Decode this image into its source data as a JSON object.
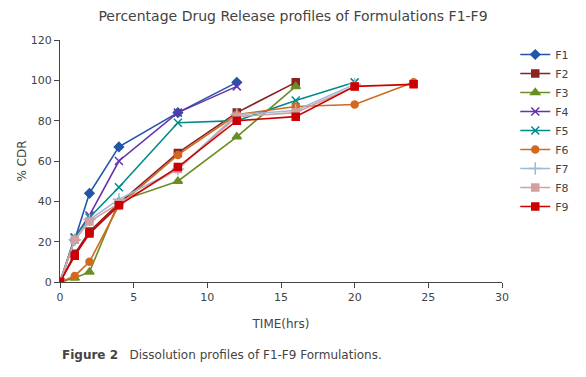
{
  "chart_data": {
    "type": "line",
    "title": "Percentage Drug Release profiles of Formulations F1-F9",
    "x_label": "TIME(hrs)",
    "y_label": "% CDR",
    "xlim": [
      0,
      30
    ],
    "ylim": [
      0,
      120
    ],
    "xticks": [
      0,
      5,
      10,
      15,
      20,
      25,
      30
    ],
    "yticks": [
      0,
      20,
      40,
      60,
      80,
      100,
      120
    ],
    "grid": false,
    "legend": "right",
    "annotations": [
      "Figure 2",
      "Dissolution profiles of F1-F9 Formulations."
    ],
    "series": [
      {
        "name": "F1",
        "color": "#2255AA",
        "marker": "diamond",
        "x": [
          0,
          1,
          2,
          4,
          8,
          12
        ],
        "values": [
          0,
          21,
          44,
          67,
          84,
          99
        ]
      },
      {
        "name": "F2",
        "color": "#8B2222",
        "marker": "square",
        "x": [
          0,
          1,
          2,
          4,
          8,
          12,
          16
        ],
        "values": [
          0,
          14,
          25,
          39,
          64,
          84,
          99
        ]
      },
      {
        "name": "F3",
        "color": "#6B8E23",
        "marker": "triangle",
        "x": [
          0,
          1,
          2,
          4,
          8,
          12,
          16
        ],
        "values": [
          0,
          2,
          5,
          40,
          50,
          72,
          97
        ]
      },
      {
        "name": "F4",
        "color": "#6633AA",
        "marker": "x",
        "x": [
          0,
          1,
          2,
          4,
          8,
          12
        ],
        "values": [
          0,
          22,
          33,
          60,
          84,
          97
        ]
      },
      {
        "name": "F5",
        "color": "#008B8B",
        "marker": "x",
        "x": [
          0,
          1,
          2,
          4,
          8,
          12,
          16,
          20
        ],
        "values": [
          0,
          22,
          32,
          47,
          79,
          80,
          90,
          99
        ]
      },
      {
        "name": "F6",
        "color": "#D2691E",
        "marker": "circle",
        "x": [
          0,
          1,
          2,
          4,
          8,
          12,
          16,
          20,
          24
        ],
        "values": [
          0,
          3,
          10,
          38,
          63,
          83,
          87,
          88,
          99
        ]
      },
      {
        "name": "F7",
        "color": "#9EB9D4",
        "marker": "plus",
        "x": [
          0,
          1,
          2,
          4,
          8,
          12,
          16,
          20
        ],
        "values": [
          0,
          21,
          31,
          41,
          56,
          83,
          85,
          98
        ]
      },
      {
        "name": "F8",
        "color": "#D2A0A0",
        "marker": "square",
        "x": [
          0,
          1,
          2,
          4,
          8,
          12,
          16,
          20
        ],
        "values": [
          0,
          21,
          30,
          39,
          56,
          82,
          84,
          97
        ]
      },
      {
        "name": "F9",
        "color": "#CC0000",
        "marker": "square",
        "x": [
          0,
          1,
          2,
          4,
          8,
          12,
          16,
          20,
          24
        ],
        "values": [
          0,
          13,
          24,
          38,
          57,
          80,
          82,
          97,
          98
        ]
      }
    ]
  }
}
